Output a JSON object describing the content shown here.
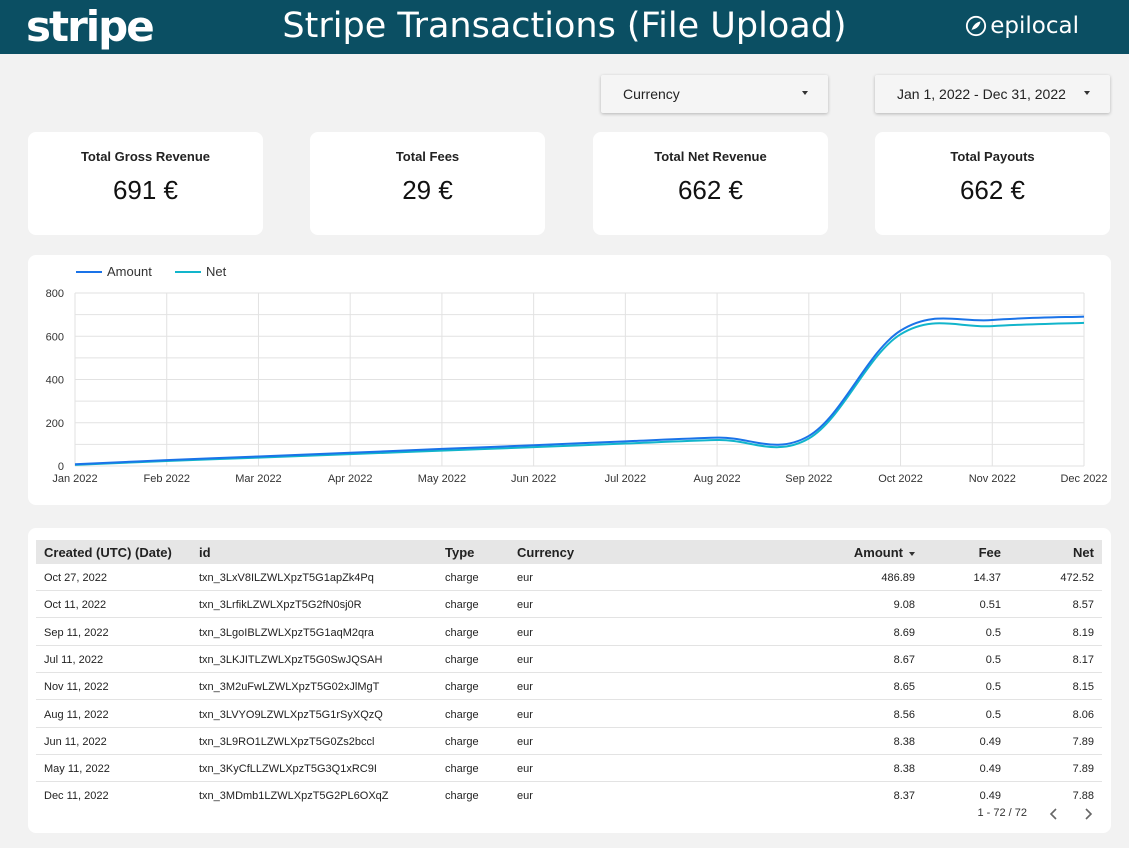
{
  "header": {
    "logo_text": "stripe",
    "title": "Stripe Transactions (File Upload)",
    "brand": "epilocal",
    "background_color": "#0b4f63"
  },
  "filters": {
    "currency_label": "Currency",
    "date_range": "Jan 1, 2022 - Dec 31, 2022"
  },
  "kpis": {
    "gross": {
      "label": "Total Gross Revenue",
      "value": "691 €"
    },
    "fees": {
      "label": "Total Fees",
      "value": "29 €"
    },
    "net": {
      "label": "Total Net Revenue",
      "value": "662 €"
    },
    "payouts": {
      "label": "Total Payouts",
      "value": "662 €"
    }
  },
  "chart_data": {
    "type": "line",
    "x": [
      "Jan 2022",
      "Feb 2022",
      "Mar 2022",
      "Apr 2022",
      "May 2022",
      "Jun 2022",
      "Jul 2022",
      "Aug 2022",
      "Sep 2022",
      "Oct 2022",
      "Nov 2022",
      "Dec 2022"
    ],
    "ylim": [
      0,
      800
    ],
    "yticks": [
      "0",
      "200",
      "400",
      "600",
      "800"
    ],
    "grid": true,
    "legend_position": "top-left",
    "series": [
      {
        "name": "Amount",
        "color": "#1a73e8",
        "values": [
          8,
          27,
          44,
          61,
          79,
          96,
          114,
          131,
          139,
          626,
          675,
          691
        ]
      },
      {
        "name": "Net",
        "color": "#12b5cb",
        "values": [
          5,
          23,
          39,
          55,
          71,
          87,
          104,
          120,
          127,
          609,
          647,
          662
        ]
      }
    ]
  },
  "table": {
    "columns": {
      "date": "Created (UTC) (Date)",
      "id": "id",
      "type": "Type",
      "currency": "Currency",
      "amount": "Amount",
      "fee": "Fee",
      "net": "Net"
    },
    "rows": [
      {
        "date": "Oct 27, 2022",
        "id": "txn_3LxV8ILZWLXpzT5G1apZk4Pq",
        "type": "charge",
        "currency": "eur",
        "amount": "486.89",
        "fee": "14.37",
        "net": "472.52"
      },
      {
        "date": "Oct 11, 2022",
        "id": "txn_3LrfikLZWLXpzT5G2fN0sj0R",
        "type": "charge",
        "currency": "eur",
        "amount": "9.08",
        "fee": "0.51",
        "net": "8.57"
      },
      {
        "date": "Sep 11, 2022",
        "id": "txn_3LgoIBLZWLXpzT5G1aqM2qra",
        "type": "charge",
        "currency": "eur",
        "amount": "8.69",
        "fee": "0.5",
        "net": "8.19"
      },
      {
        "date": "Jul 11, 2022",
        "id": "txn_3LKJITLZWLXpzT5G0SwJQSAH",
        "type": "charge",
        "currency": "eur",
        "amount": "8.67",
        "fee": "0.5",
        "net": "8.17"
      },
      {
        "date": "Nov 11, 2022",
        "id": "txn_3M2uFwLZWLXpzT5G02xJlMgT",
        "type": "charge",
        "currency": "eur",
        "amount": "8.65",
        "fee": "0.5",
        "net": "8.15"
      },
      {
        "date": "Aug 11, 2022",
        "id": "txn_3LVYO9LZWLXpzT5G1rSyXQzQ",
        "type": "charge",
        "currency": "eur",
        "amount": "8.56",
        "fee": "0.5",
        "net": "8.06"
      },
      {
        "date": "Jun 11, 2022",
        "id": "txn_3L9RO1LZWLXpzT5G0Zs2bccl",
        "type": "charge",
        "currency": "eur",
        "amount": "8.38",
        "fee": "0.49",
        "net": "7.89"
      },
      {
        "date": "May 11, 2022",
        "id": "txn_3KyCfLLZWLXpzT5G3Q1xRC9I",
        "type": "charge",
        "currency": "eur",
        "amount": "8.38",
        "fee": "0.49",
        "net": "7.89"
      },
      {
        "date": "Dec 11, 2022",
        "id": "txn_3MDmb1LZWLXpzT5G2PL6OXqZ",
        "type": "charge",
        "currency": "eur",
        "amount": "8.37",
        "fee": "0.49",
        "net": "7.88"
      }
    ],
    "pagination": "1 - 72 / 72"
  },
  "icons": {
    "dropdown": "chevron-down-icon",
    "sort": "sort-desc-icon",
    "prev": "chevron-left-icon",
    "next": "chevron-right-icon"
  }
}
